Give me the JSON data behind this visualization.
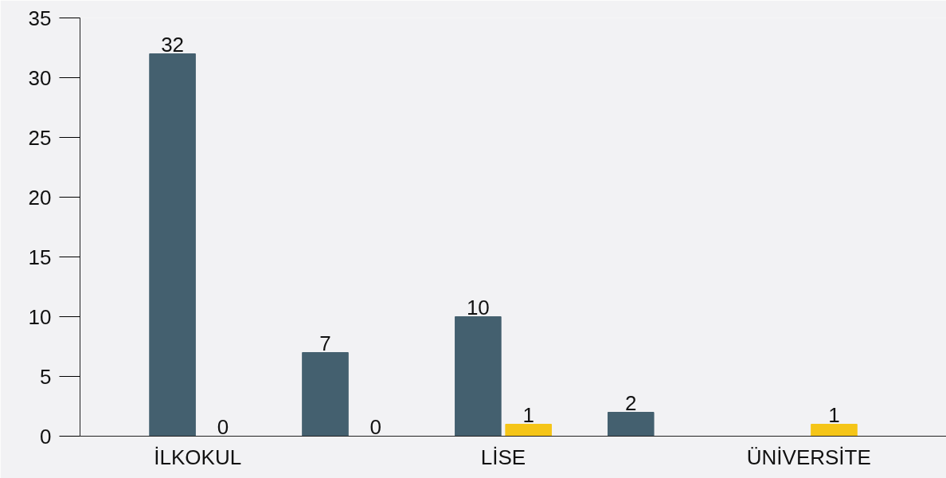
{
  "chart_data": {
    "type": "bar",
    "categories": [
      "İLKOKUL",
      null,
      "LİSE",
      null,
      "ÜNİVERSİTE"
    ],
    "series": [
      {
        "color": "#44606f",
        "values": [
          32,
          7,
          10,
          2,
          null
        ]
      },
      {
        "color": "#f5c518",
        "values": [
          0,
          0,
          1,
          null,
          1
        ]
      }
    ],
    "ylim": [
      0,
      35
    ],
    "yticks": [
      0,
      5,
      10,
      15,
      20,
      25,
      30,
      35
    ],
    "data_labels": true,
    "grid": false
  }
}
